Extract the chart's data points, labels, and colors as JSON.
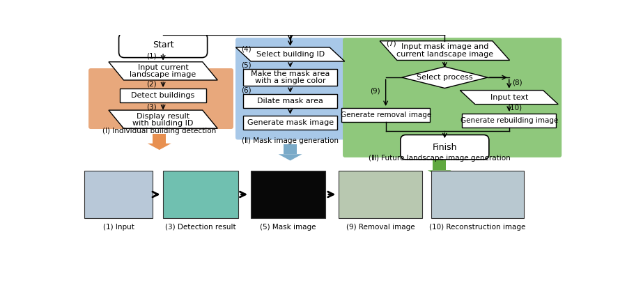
{
  "bg_color": "#ffffff",
  "orange_bg": "#E8A87C",
  "blue_bg": "#A8C8E8",
  "green_bg": "#8FC87C",
  "orange_arrow": "#E89050",
  "blue_arrow": "#7AAAC8",
  "green_arrow": "#60A840",
  "section_labels": [
    "(Ⅰ) Individual building detection",
    "(Ⅱ) Mask image generation",
    "(Ⅲ) Future landscape image generation"
  ],
  "bottom_labels": [
    "(1) Input",
    "(3) Detection result",
    "(5) Mask image",
    "(9) Removal image",
    "(10) Reconstruction image"
  ]
}
